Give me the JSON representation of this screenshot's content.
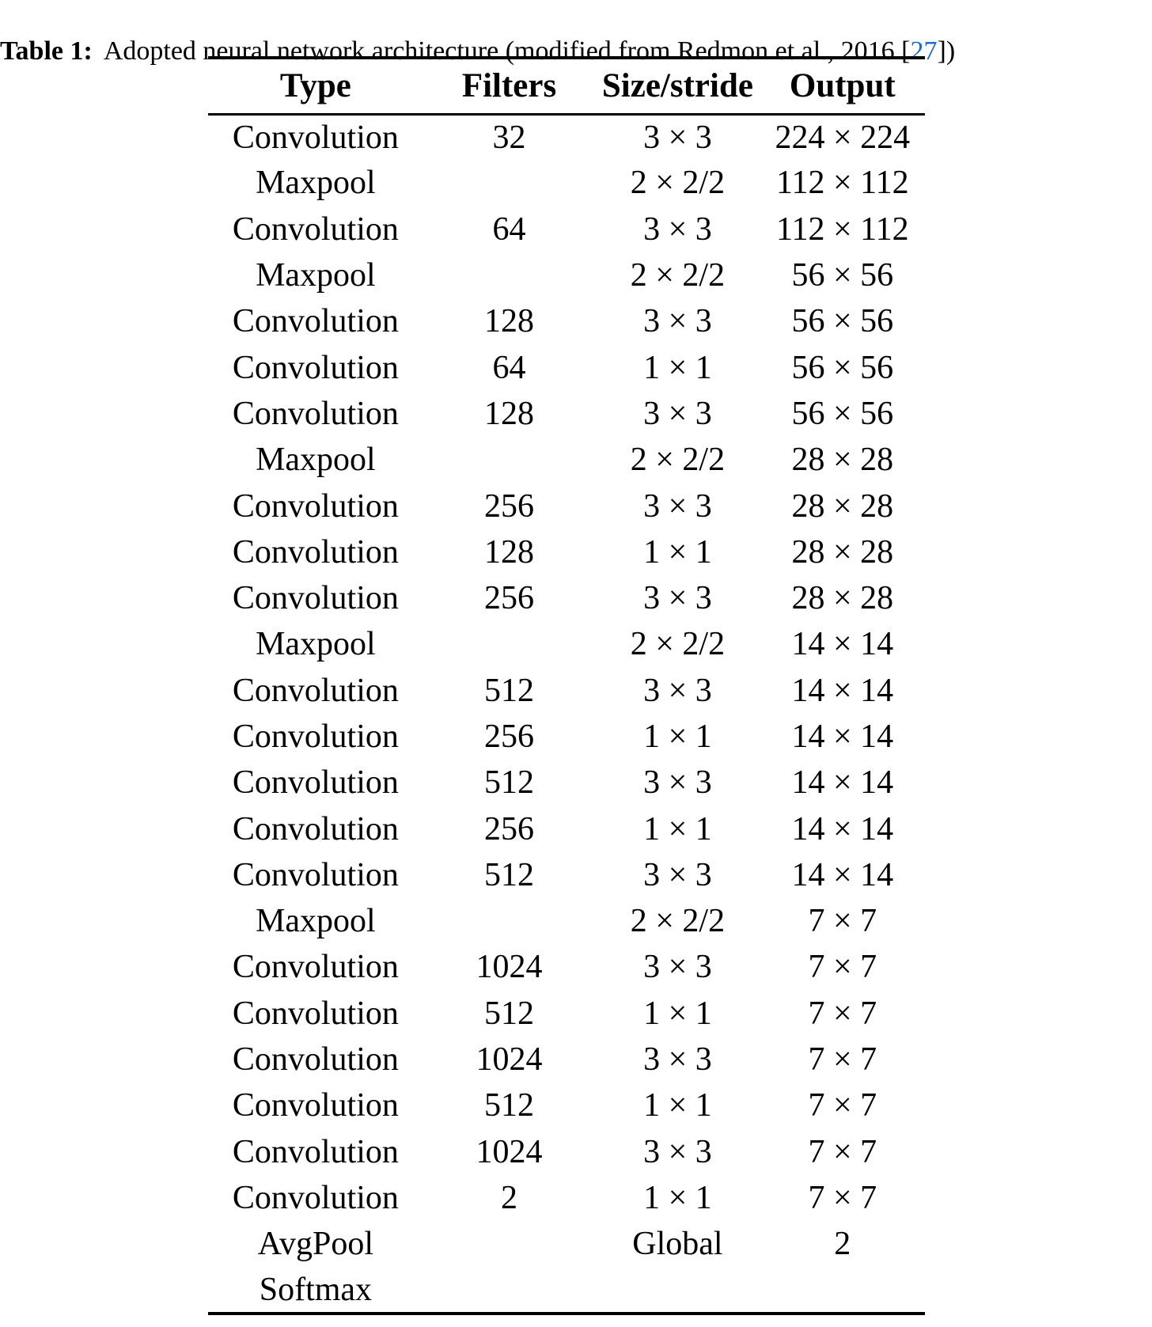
{
  "caption": {
    "label": "Table 1:",
    "before_cite": "Adopted neural network architecture (modified from Redmon et al., 2016 [",
    "citation": "27",
    "after_cite": "])"
  },
  "table": {
    "headers": [
      "Type",
      "Filters",
      "Size/stride",
      "Output"
    ],
    "rows": [
      [
        "Convolution",
        "32",
        "3 × 3",
        "224 × 224"
      ],
      [
        "Maxpool",
        "",
        "2 × 2/2",
        "112 × 112"
      ],
      [
        "Convolution",
        "64",
        "3 × 3",
        "112 × 112"
      ],
      [
        "Maxpool",
        "",
        "2 × 2/2",
        "56 × 56"
      ],
      [
        "Convolution",
        "128",
        "3 × 3",
        "56 × 56"
      ],
      [
        "Convolution",
        "64",
        "1 × 1",
        "56 × 56"
      ],
      [
        "Convolution",
        "128",
        "3 × 3",
        "56 × 56"
      ],
      [
        "Maxpool",
        "",
        "2 × 2/2",
        "28 × 28"
      ],
      [
        "Convolution",
        "256",
        "3 × 3",
        "28 × 28"
      ],
      [
        "Convolution",
        "128",
        "1 × 1",
        "28 × 28"
      ],
      [
        "Convolution",
        "256",
        "3 × 3",
        "28 × 28"
      ],
      [
        "Maxpool",
        "",
        "2 × 2/2",
        "14 × 14"
      ],
      [
        "Convolution",
        "512",
        "3 × 3",
        "14 × 14"
      ],
      [
        "Convolution",
        "256",
        "1 × 1",
        "14 × 14"
      ],
      [
        "Convolution",
        "512",
        "3 × 3",
        "14 × 14"
      ],
      [
        "Convolution",
        "256",
        "1 × 1",
        "14 × 14"
      ],
      [
        "Convolution",
        "512",
        "3 × 3",
        "14 × 14"
      ],
      [
        "Maxpool",
        "",
        "2 × 2/2",
        "7 × 7"
      ],
      [
        "Convolution",
        "1024",
        "3 × 3",
        "7 × 7"
      ],
      [
        "Convolution",
        "512",
        "1 × 1",
        "7 × 7"
      ],
      [
        "Convolution",
        "1024",
        "3 × 3",
        "7 × 7"
      ],
      [
        "Convolution",
        "512",
        "1 × 1",
        "7 × 7"
      ],
      [
        "Convolution",
        "1024",
        "3 × 3",
        "7 × 7"
      ],
      [
        "Convolution",
        "2",
        "1 × 1",
        "7 × 7"
      ],
      [
        "AvgPool",
        "",
        "Global",
        "2"
      ],
      [
        "Softmax",
        "",
        "",
        ""
      ]
    ]
  },
  "colors": {
    "text": "#000000",
    "rule": "#000000",
    "link_blue": "#1b6fc9"
  }
}
